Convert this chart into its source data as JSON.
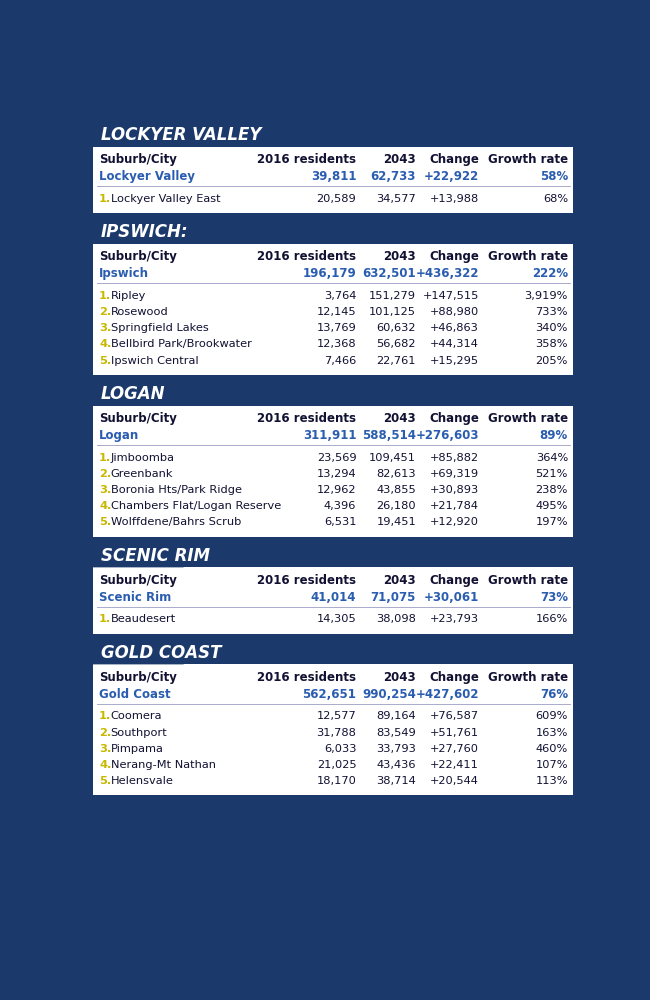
{
  "bg_color": "#1b3a6b",
  "table_bg": "#ffffff",
  "header_bg": "#1b3a6b",
  "white": "#ffffff",
  "blue_text": "#2a5db0",
  "yellow": "#c8b800",
  "dark_text": "#111133",
  "gray_row": "#f2f2f2",
  "sections": [
    {
      "title": "LOCKYER VALLEY",
      "columns": [
        "Suburb/City",
        "2016 residents",
        "2043",
        "Change",
        "Growth rate"
      ],
      "summary": [
        "Lockyer Valley",
        "39,811",
        "62,733",
        "+22,922",
        "58%"
      ],
      "rows": [
        [
          "1",
          "Lockyer Valley East",
          "20,589",
          "34,577",
          "+13,988",
          "68%"
        ]
      ]
    },
    {
      "title": "IPSWICH:",
      "columns": [
        "Suburb/City",
        "2016 residents",
        "2043",
        "Change",
        "Growth rate"
      ],
      "summary": [
        "Ipswich",
        "196,179",
        "632,501",
        "+436,322",
        "222%"
      ],
      "rows": [
        [
          "1",
          "Ripley",
          "3,764",
          "151,279",
          "+147,515",
          "3,919%"
        ],
        [
          "2",
          "Rosewood",
          "12,145",
          "101,125",
          "+88,980",
          "733%"
        ],
        [
          "3",
          "Springfield Lakes",
          "13,769",
          "60,632",
          "+46,863",
          "340%"
        ],
        [
          "4",
          "Bellbird Park/Brookwater",
          "12,368",
          "56,682",
          "+44,314",
          "358%"
        ],
        [
          "5",
          "Ipswich Central",
          "7,466",
          "22,761",
          "+15,295",
          "205%"
        ]
      ]
    },
    {
      "title": "LOGAN",
      "columns": [
        "Suburb/City",
        "2016 residents",
        "2043",
        "Change",
        "Growth rate"
      ],
      "summary": [
        "Logan",
        "311,911",
        "588,514",
        "+276,603",
        "89%"
      ],
      "rows": [
        [
          "1",
          "Jimboomba",
          "23,569",
          "109,451",
          "+85,882",
          "364%"
        ],
        [
          "2",
          "Greenbank",
          "13,294",
          "82,613",
          "+69,319",
          "521%"
        ],
        [
          "3",
          "Boronia Hts/Park Ridge",
          "12,962",
          "43,855",
          "+30,893",
          "238%"
        ],
        [
          "4",
          "Chambers Flat/Logan Reserve",
          "4,396",
          "26,180",
          "+21,784",
          "495%"
        ],
        [
          "5",
          "Wolffdene/Bahrs Scrub",
          "6,531",
          "19,451",
          "+12,920",
          "197%"
        ]
      ]
    },
    {
      "title": "SCENIC RIM",
      "columns": [
        "Suburb/City",
        "2016 residents",
        "2043",
        "Change",
        "Growth rate"
      ],
      "summary": [
        "Scenic Rim",
        "41,014",
        "71,075",
        "+30,061",
        "73%"
      ],
      "rows": [
        [
          "1",
          "Beaudesert",
          "14,305",
          "38,098",
          "+23,793",
          "166%"
        ]
      ]
    },
    {
      "title": "GOLD COAST",
      "columns": [
        "Suburb/City",
        "2016 residents",
        "2043",
        "Change",
        "Growth rate"
      ],
      "summary": [
        "Gold Coast",
        "562,651",
        "990,254",
        "+427,602",
        "76%"
      ],
      "rows": [
        [
          "1",
          "Coomera",
          "12,577",
          "89,164",
          "+76,587",
          "609%"
        ],
        [
          "2",
          "Southport",
          "31,788",
          "83,549",
          "+51,761",
          "163%"
        ],
        [
          "3",
          "Pimpama",
          "6,033",
          "33,793",
          "+27,760",
          "460%"
        ],
        [
          "4",
          "Nerang-Mt Nathan",
          "21,025",
          "43,436",
          "+22,411",
          "107%"
        ],
        [
          "5",
          "Helensvale",
          "18,170",
          "38,714",
          "+20,544",
          "113%"
        ]
      ]
    }
  ]
}
